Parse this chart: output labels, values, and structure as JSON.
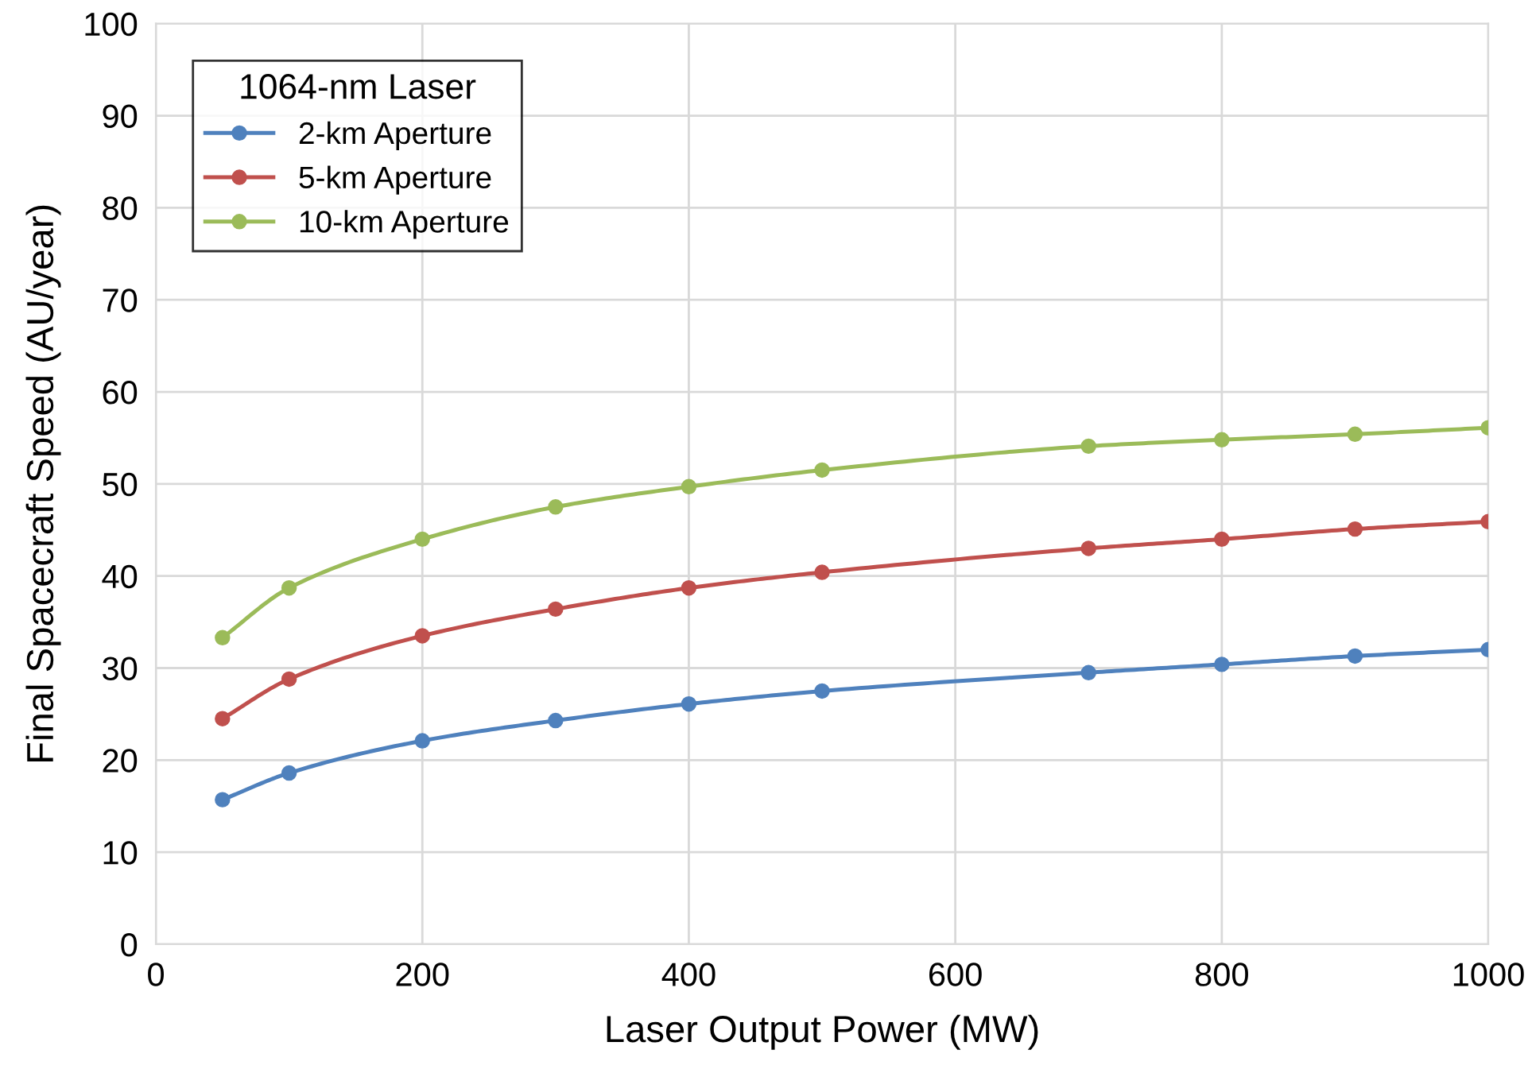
{
  "chart_data": {
    "type": "line",
    "xlabel": "Laser Output Power (MW)",
    "ylabel": "Final Spacecraft Speed (AU/year)",
    "legend_title": "1064-nm Laser",
    "x": [
      50,
      100,
      200,
      300,
      400,
      500,
      700,
      800,
      900,
      1000
    ],
    "series": [
      {
        "name": "2-km Aperture",
        "color": "#4f81bd",
        "values": [
          15.7,
          18.6,
          22.1,
          24.3,
          26.1,
          27.5,
          29.5,
          30.4,
          31.3,
          32.0
        ]
      },
      {
        "name": "5-km Aperture",
        "color": "#c0504d",
        "values": [
          24.5,
          28.8,
          33.5,
          36.4,
          38.7,
          40.4,
          43.0,
          44.0,
          45.1,
          45.9
        ]
      },
      {
        "name": "10-km Aperture",
        "color": "#9bbb59",
        "values": [
          33.3,
          38.7,
          44.0,
          47.5,
          49.7,
          51.5,
          54.1,
          54.8,
          55.4,
          56.1
        ]
      }
    ],
    "xlim": [
      0,
      1000
    ],
    "xticks": [
      0,
      200,
      400,
      600,
      800,
      1000
    ],
    "ylim": [
      0,
      100
    ],
    "yticks": [
      0,
      10,
      20,
      30,
      40,
      50,
      60,
      70,
      80,
      90,
      100
    ],
    "grid": true,
    "legend": "top left",
    "marker": "circle",
    "line_style": "solid"
  }
}
